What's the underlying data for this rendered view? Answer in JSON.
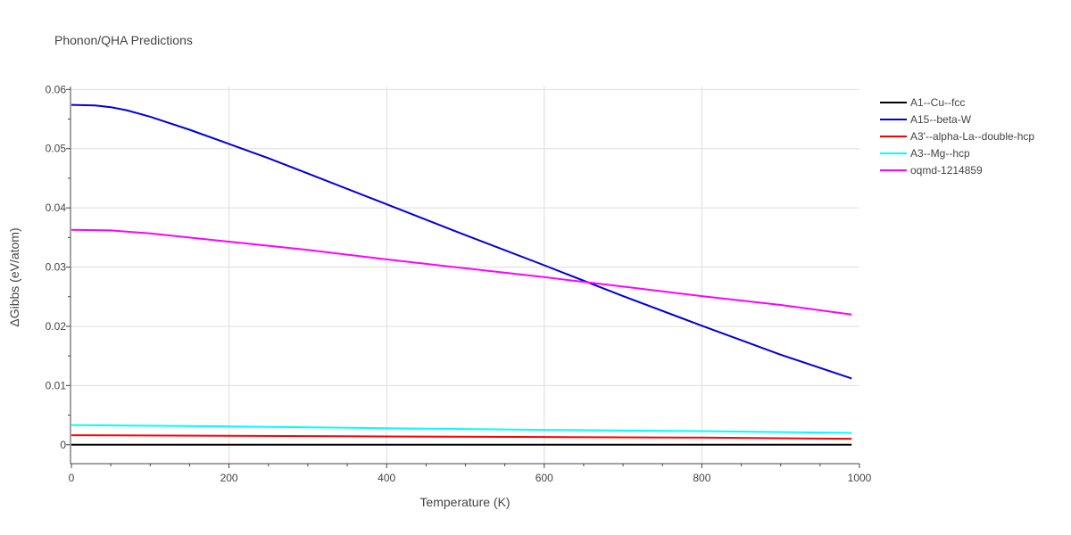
{
  "chart_data": {
    "type": "line",
    "title": "Phonon/QHA Predictions",
    "xlabel": "Temperature (K)",
    "ylabel": "ΔGibbs (eV/atom)",
    "xlim": [
      0,
      1000
    ],
    "ylim": [
      -0.0032,
      0.0605
    ],
    "xticks": [
      0,
      200,
      400,
      600,
      800,
      1000
    ],
    "xtick_labels": [
      "0",
      "200",
      "400",
      "600",
      "800",
      "1000"
    ],
    "yticks": [
      0,
      0.01,
      0.02,
      0.03,
      0.04,
      0.05,
      0.06
    ],
    "ytick_labels": [
      "0",
      "0.01",
      "0.02",
      "0.03",
      "0.04",
      "0.05",
      "0.06"
    ],
    "grid": true,
    "legend_position": "top-right, outside plot",
    "series": [
      {
        "name": "A1--Cu--fcc",
        "color": "#000000",
        "x": [
          0,
          990
        ],
        "y": [
          0,
          0
        ]
      },
      {
        "name": "A15--beta-W",
        "color": "#0000dd",
        "x": [
          0,
          30,
          50,
          70,
          100,
          150,
          200,
          250,
          300,
          400,
          500,
          600,
          700,
          800,
          900,
          990
        ],
        "y": [
          0.0574,
          0.0573,
          0.057,
          0.0565,
          0.0554,
          0.0532,
          0.0508,
          0.0484,
          0.0458,
          0.0406,
          0.0354,
          0.0303,
          0.0251,
          0.0201,
          0.0152,
          0.0112
        ]
      },
      {
        "name": "A3'--alpha-La--double-hcp",
        "color": "#ff0000",
        "x": [
          0,
          200,
          400,
          600,
          800,
          990
        ],
        "y": [
          0.0016,
          0.0015,
          0.0014,
          0.0013,
          0.0012,
          0.001
        ]
      },
      {
        "name": "A3--Mg--hcp",
        "color": "#00ffff",
        "x": [
          0,
          200,
          400,
          600,
          800,
          990
        ],
        "y": [
          0.0033,
          0.0031,
          0.0028,
          0.0025,
          0.0023,
          0.002
        ]
      },
      {
        "name": "oqmd-1214859",
        "color": "#ff00ff",
        "x": [
          0,
          50,
          100,
          200,
          300,
          400,
          500,
          600,
          700,
          800,
          900,
          990
        ],
        "y": [
          0.0363,
          0.0362,
          0.0357,
          0.0343,
          0.0329,
          0.0313,
          0.0298,
          0.0283,
          0.0267,
          0.0251,
          0.0236,
          0.022
        ]
      }
    ]
  }
}
